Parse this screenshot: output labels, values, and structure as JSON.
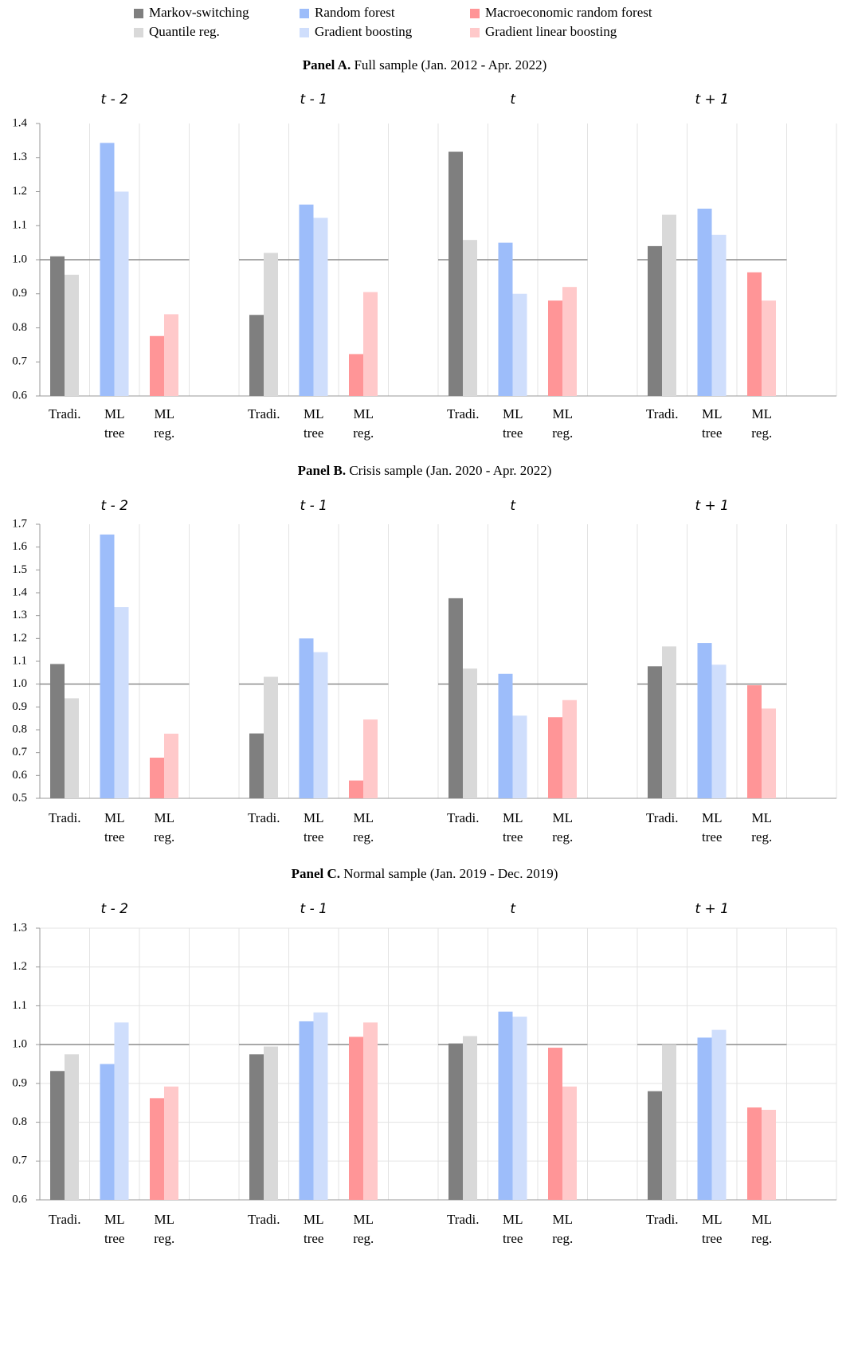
{
  "chart_data": {
    "type": "bar",
    "horizons": [
      "t - 2",
      "t - 1",
      "t",
      "t + 1"
    ],
    "categories": [
      "Tradi.",
      "ML tree",
      "ML reg."
    ],
    "series": [
      {
        "name": "Markov-switching",
        "color": "#7f7f7f"
      },
      {
        "name": "Quantile reg.",
        "color": "#d9d9d9"
      },
      {
        "name": "Random forest",
        "color": "#9dbdfa"
      },
      {
        "name": "Gradient boosting",
        "color": "#cfdefc"
      },
      {
        "name": "Macroeconomic random forest",
        "color": "#ff9597"
      },
      {
        "name": "Gradient linear boosting",
        "color": "#ffc9ca"
      }
    ],
    "panels": [
      {
        "label": "Panel A.",
        "title": "Full sample (Jan. 2012 - Apr. 2022)",
        "ylim": [
          0.6,
          1.4
        ],
        "yticks": [
          0.6,
          0.7,
          0.8,
          0.9,
          {
            "value": 1,
            "label": "1.0"
          },
          1.1,
          1.2,
          1.3,
          1.4
        ],
        "grid": false,
        "reference": 1,
        "values": [
          [
            1.01,
            0.838,
            1.317,
            1.04
          ],
          [
            0.956,
            1.02,
            1.058,
            1.132
          ],
          [
            1.343,
            1.162,
            1.05,
            1.15
          ],
          [
            1.2,
            1.123,
            0.9,
            1.073
          ],
          [
            0.776,
            0.723,
            0.88,
            0.963
          ],
          [
            0.84,
            0.905,
            0.92,
            0.88
          ]
        ]
      },
      {
        "label": "Panel B.",
        "title": "Crisis sample (Jan. 2020 - Apr. 2022)",
        "ylim": [
          0.5,
          1.7
        ],
        "yticks": [
          0.5,
          0.6,
          0.7,
          0.8,
          0.9,
          {
            "value": 1,
            "label": "1.0"
          },
          1.1,
          1.2,
          1.3,
          1.4,
          1.5,
          1.6,
          1.7
        ],
        "grid": false,
        "reference": 1,
        "values": [
          [
            1.088,
            0.784,
            1.376,
            1.078
          ],
          [
            0.938,
            1.032,
            1.068,
            1.165
          ],
          [
            1.655,
            1.2,
            1.045,
            1.18
          ],
          [
            1.337,
            1.14,
            0.862,
            1.085
          ],
          [
            0.678,
            0.578,
            0.855,
            0.995
          ],
          [
            0.783,
            0.845,
            0.93,
            0.893
          ]
        ]
      },
      {
        "label": "Panel C.",
        "title": "Normal sample (Jan. 2019 - Dec. 2019)",
        "ylim": [
          0.6,
          1.3
        ],
        "yticks": [
          0.6,
          0.7,
          0.8,
          0.9,
          {
            "value": 1,
            "label": "1.0"
          },
          1.1,
          1.2,
          1.3
        ],
        "grid": true,
        "reference": 1,
        "values": [
          [
            0.932,
            0.975,
            1.003,
            0.88
          ],
          [
            0.975,
            0.995,
            1.022,
            1.0
          ],
          [
            0.95,
            1.06,
            1.085,
            1.018
          ],
          [
            1.057,
            1.083,
            1.072,
            1.038
          ],
          [
            0.862,
            1.02,
            0.992,
            0.838
          ],
          [
            0.892,
            1.057,
            0.892,
            0.832
          ]
        ]
      }
    ]
  }
}
